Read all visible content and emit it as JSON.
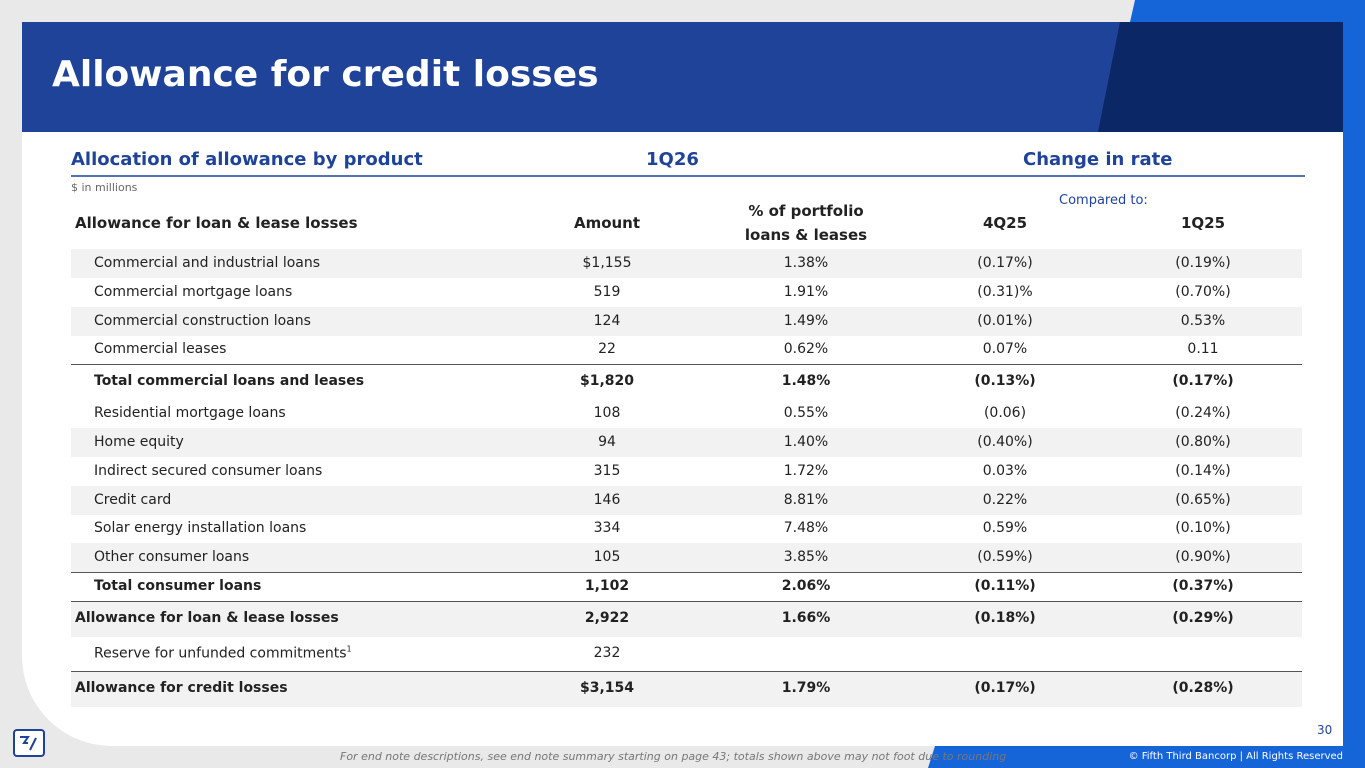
{
  "header": {
    "title": "Allowance for credit losses"
  },
  "table": {
    "section_title": "Allocation of allowance by product",
    "period": "1Q26",
    "change_title": "Change in rate",
    "units": "$ in millions",
    "compared_to": "Compared to:",
    "columns": [
      "Allowance for loan & lease losses",
      "Amount",
      "% of portfolio loans & leases",
      "4Q25",
      "1Q25"
    ],
    "rows": [
      {
        "label": "Commercial and industrial loans",
        "values": [
          "$1,155",
          "1.38%",
          "(0.17%)",
          "(0.19%)"
        ]
      },
      {
        "label": "Commercial mortgage loans",
        "values": [
          "519",
          "1.91%",
          "(0.31)%",
          "(0.70%)"
        ]
      },
      {
        "label": "Commercial construction loans",
        "values": [
          "124",
          "1.49%",
          "(0.01%)",
          "0.53%"
        ]
      },
      {
        "label": "Commercial leases",
        "values": [
          "22",
          "0.62%",
          "0.07%",
          "0.11"
        ]
      },
      {
        "label": "Total commercial loans and leases",
        "values": [
          "$1,820",
          "1.48%",
          "(0.13%)",
          "(0.17%)"
        ]
      },
      {
        "label": "Residential mortgage loans",
        "values": [
          "108",
          "0.55%",
          "(0.06)",
          "(0.24%)"
        ]
      },
      {
        "label": "Home equity",
        "values": [
          "94",
          "1.40%",
          "(0.40%)",
          "(0.80%)"
        ]
      },
      {
        "label": "Indirect secured consumer loans",
        "values": [
          "315",
          "1.72%",
          "0.03%",
          "(0.14%)"
        ]
      },
      {
        "label": "Credit card",
        "values": [
          "146",
          "8.81%",
          "0.22%",
          "(0.65%)"
        ]
      },
      {
        "label": "Solar energy installation loans",
        "values": [
          "334",
          "7.48%",
          "0.59%",
          "(0.10%)"
        ]
      },
      {
        "label": "Other consumer loans",
        "values": [
          "105",
          "3.85%",
          "(0.59%)",
          "(0.90%)"
        ]
      },
      {
        "label": "Total consumer loans",
        "values": [
          "1,102",
          "2.06%",
          "(0.11%)",
          "(0.37%)"
        ]
      },
      {
        "label": "Allowance for loan & lease losses",
        "values": [
          "2,922",
          "1.66%",
          "(0.18%)",
          "(0.29%)"
        ]
      },
      {
        "label": "Reserve for unfunded commitments",
        "note": "1",
        "values": [
          "232"
        ]
      },
      {
        "label": "Allowance for credit losses",
        "values": [
          "$3,154",
          "1.79%",
          "(0.17%)",
          "(0.28%)"
        ]
      }
    ]
  },
  "footer": {
    "note": "For end note descriptions, see end note summary starting on page 43; totals shown above may not foot due to rounding",
    "page": "30",
    "copyright": "© Fifth Third Bancorp | All Rights Reserved"
  }
}
